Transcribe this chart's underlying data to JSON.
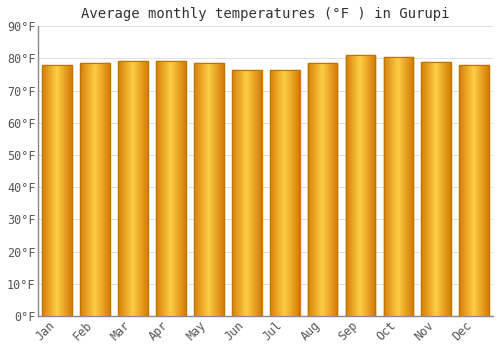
{
  "title": "Average monthly temperatures (°F ) in Gurupi",
  "months": [
    "Jan",
    "Feb",
    "Mar",
    "Apr",
    "May",
    "Jun",
    "Jul",
    "Aug",
    "Sep",
    "Oct",
    "Nov",
    "Dec"
  ],
  "values": [
    78.0,
    78.5,
    79.2,
    79.2,
    78.5,
    76.5,
    76.3,
    78.5,
    81.0,
    80.5,
    79.0,
    78.0
  ],
  "ylim": [
    0,
    90
  ],
  "yticks": [
    0,
    10,
    20,
    30,
    40,
    50,
    60,
    70,
    80,
    90
  ],
  "ytick_labels": [
    "0°F",
    "10°F",
    "20°F",
    "30°F",
    "40°F",
    "50°F",
    "60°F",
    "70°F",
    "80°F",
    "90°F"
  ],
  "bar_color_center": "#FFD060",
  "bar_color_edge": "#E08800",
  "bar_border_color": "#B87800",
  "background_color": "#FFFFFF",
  "plot_bg_color": "#FFFFFF",
  "grid_color": "#E0E0E0",
  "title_fontsize": 10,
  "tick_fontsize": 8.5,
  "font_family": "monospace",
  "bar_width": 0.78
}
